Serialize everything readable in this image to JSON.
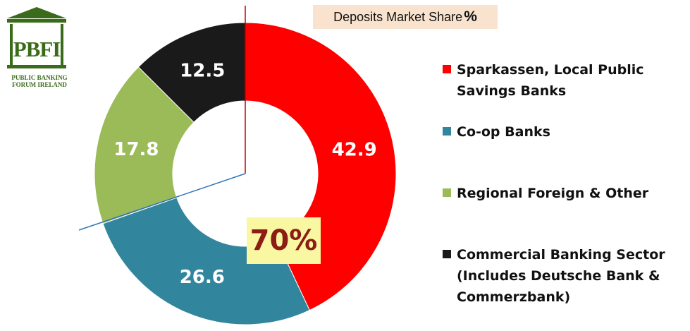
{
  "logo": {
    "mark": "PBFI",
    "lines": [
      "PUBLIC BANKING",
      "FORUM IRELAND"
    ]
  },
  "title": {
    "text": "Deposits Market Share",
    "suffix": "%"
  },
  "highlight": {
    "text": "70%",
    "color": "#8b1d16",
    "background": "#faf7a2"
  },
  "chart_data": {
    "type": "pie",
    "variant": "donut",
    "title": "Deposits Market Share %",
    "slices": [
      {
        "name": "Sparkassen, Local Public Savings Banks",
        "value": 42.9,
        "color": "#ff0000",
        "label_color": "#ffffff"
      },
      {
        "name": "Co-op Banks",
        "value": 26.6,
        "color": "#31859c",
        "label_color": "#ffffff"
      },
      {
        "name": "Regional Foreign & Other",
        "value": 17.8,
        "color": "#9bbb59",
        "label_color": "#ffffff"
      },
      {
        "name": "Commercial Banking Sector (Includes Deutsche Bank & Commerzbank)",
        "value": 12.5,
        "color": "#1a1a1a",
        "label_color": "#ffffff"
      }
    ],
    "legend_position": "right"
  },
  "legend": [
    {
      "label": "Sparkassen, Local Public\nSavings Banks",
      "color": "#ff0000"
    },
    {
      "label": "Co-op Banks",
      "color": "#31859c"
    },
    {
      "label": "Regional Foreign & Other",
      "color": "#9bbb59"
    },
    {
      "label": "Commercial Banking Sector\n(Includes Deutsche Bank &\nCommerzbank)",
      "color": "#1a1a1a"
    }
  ]
}
